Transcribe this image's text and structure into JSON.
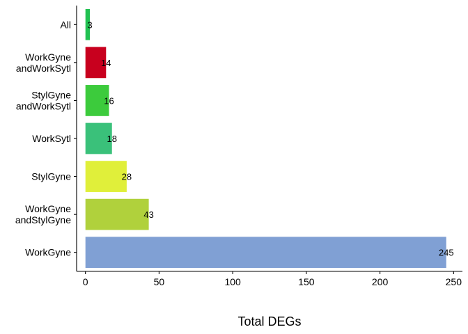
{
  "chart_data": {
    "type": "bar",
    "orientation": "horizontal",
    "categories": [
      "All",
      "WorkGyne\nandWorkSytl",
      "StylGyne\nandWorkSytl",
      "WorkSytl",
      "StylGyne",
      "WorkGyne\nandStylGyne",
      "WorkGyne"
    ],
    "values": [
      3,
      14,
      16,
      18,
      28,
      43,
      245
    ],
    "data_labels": [
      "3",
      "14",
      "16",
      "18",
      "28",
      "43",
      "245"
    ],
    "colors": [
      "#22c152",
      "#c8001e",
      "#3ccb3c",
      "#3ac17a",
      "#e0ef3a",
      "#b0d13c",
      "#80a0d4"
    ],
    "xlabel": "Total DEGs",
    "ylabel": "",
    "title": "",
    "xlim": [
      -6,
      256
    ],
    "xticks": [
      0,
      50,
      100,
      150,
      200,
      250
    ],
    "xtick_labels": [
      "0",
      "50",
      "100",
      "150",
      "200",
      "250"
    ],
    "grid": false,
    "legend": "none"
  }
}
